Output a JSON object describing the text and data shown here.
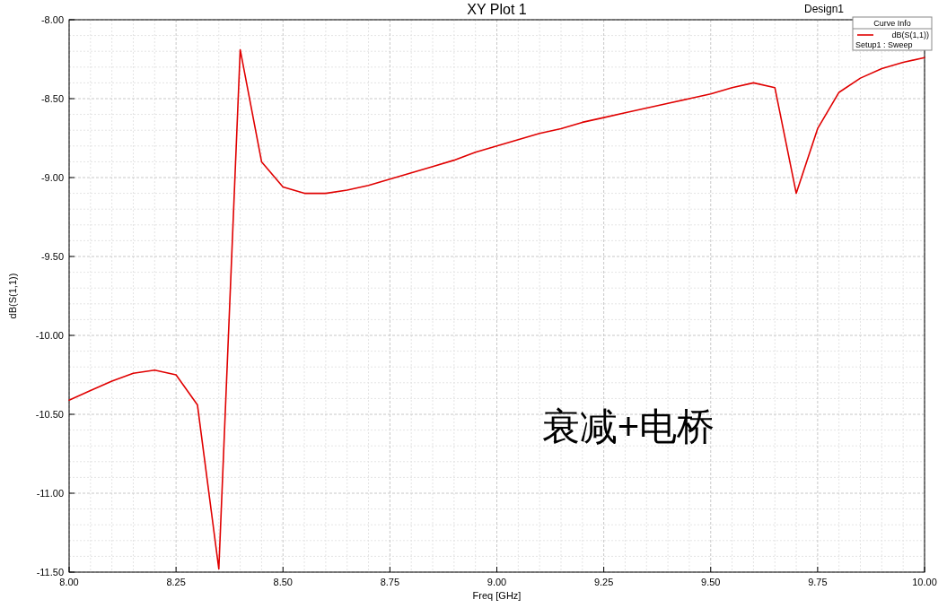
{
  "chart_data": {
    "type": "line",
    "title": "XY Plot 1",
    "xlabel": "Freq [GHz]",
    "ylabel": "dB(S(1,1))",
    "legend_title": "Curve Info",
    "x": [
      8.0,
      8.05,
      8.1,
      8.15,
      8.2,
      8.25,
      8.3,
      8.35,
      8.4,
      8.45,
      8.5,
      8.55,
      8.6,
      8.65,
      8.7,
      8.75,
      8.8,
      8.85,
      8.9,
      8.95,
      9.0,
      9.05,
      9.1,
      9.15,
      9.2,
      9.25,
      9.3,
      9.35,
      9.4,
      9.45,
      9.5,
      9.55,
      9.6,
      9.65,
      9.7,
      9.75,
      9.8,
      9.85,
      9.9,
      9.95,
      10.0
    ],
    "series": [
      {
        "name": "dB(S(1,1))",
        "color": "#e00000",
        "values": [
          -10.41,
          -10.35,
          -10.29,
          -10.24,
          -10.22,
          -10.25,
          -10.44,
          -11.48,
          -8.19,
          -8.9,
          -9.06,
          -9.1,
          -9.1,
          -9.08,
          -9.05,
          -9.01,
          -8.97,
          -8.93,
          -8.89,
          -8.84,
          -8.8,
          -8.76,
          -8.72,
          -8.69,
          -8.65,
          -8.62,
          -8.59,
          -8.56,
          -8.53,
          -8.5,
          -8.47,
          -8.43,
          -8.4,
          -8.43,
          -9.1,
          -8.69,
          -8.46,
          -8.37,
          -8.31,
          -8.27,
          -8.24
        ]
      }
    ],
    "xlim": [
      8.0,
      10.0
    ],
    "ylim": [
      -11.5,
      -8.0
    ],
    "xticks": [
      {
        "value": 8.0,
        "label": "8.00"
      },
      {
        "value": 8.25,
        "label": "8.25"
      },
      {
        "value": 8.5,
        "label": "8.50"
      },
      {
        "value": 8.75,
        "label": "8.75"
      },
      {
        "value": 9.0,
        "label": "9.00"
      },
      {
        "value": 9.25,
        "label": "9.25"
      },
      {
        "value": 9.5,
        "label": "9.50"
      },
      {
        "value": 9.75,
        "label": "9.75"
      },
      {
        "value": 10.0,
        "label": "10.00"
      }
    ],
    "yticks": [
      {
        "value": -11.5,
        "label": "-11.50"
      },
      {
        "value": -11.0,
        "label": "-11.00"
      },
      {
        "value": -10.5,
        "label": "-10.50"
      },
      {
        "value": -10.0,
        "label": "-10.00"
      },
      {
        "value": -9.5,
        "label": "-9.50"
      },
      {
        "value": -9.0,
        "label": "-9.00"
      },
      {
        "value": -8.5,
        "label": "-8.50"
      },
      {
        "value": -8.0,
        "label": "-8.00"
      }
    ],
    "grid": true,
    "legend": "top right",
    "marker": "none",
    "line_style": "solid",
    "annotations": [
      "Design1",
      "Setup1 : Sweep",
      "衰减+电桥"
    ]
  }
}
